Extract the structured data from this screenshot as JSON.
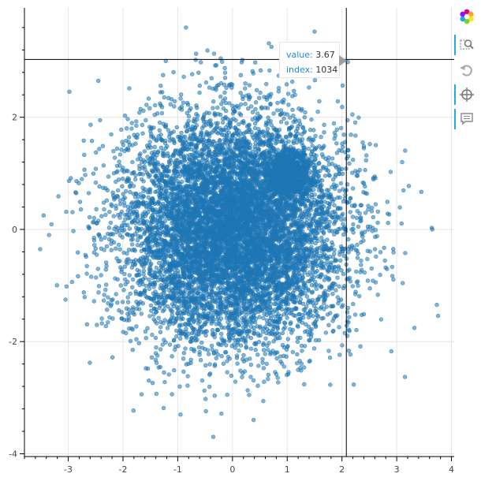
{
  "chart_data": {
    "type": "scatter",
    "title": "",
    "xlabel": "",
    "ylabel": "",
    "xlim": [
      -3.8,
      4.05
    ],
    "ylim": [
      -4.05,
      3.95
    ],
    "x_ticks": [
      "-3",
      "-2",
      "-1",
      "0",
      "1",
      "2",
      "3",
      "4"
    ],
    "y_ticks": [
      "-4",
      "-2",
      "0",
      "2"
    ],
    "grid": true,
    "series": [
      {
        "color": "#1f77b4",
        "distribution": "normal",
        "mean": [
          0,
          0
        ],
        "std": 1.0,
        "count": 9000
      },
      {
        "color": "#1f77b4",
        "distribution": "normal",
        "mean": [
          1,
          1
        ],
        "std": 0.2,
        "count": 1000
      }
    ],
    "outliers": [
      [
        -0.85,
        3.6
      ],
      [
        -0.95,
        -3.3
      ],
      [
        -0.35,
        -3.7
      ],
      [
        3.65,
        0.0
      ],
      [
        3.45,
        0.67
      ],
      [
        3.1,
        1.2
      ],
      [
        -3.45,
        0.25
      ],
      [
        -3.35,
        -0.1
      ],
      [
        -3.05,
        -1.25
      ],
      [
        -2.45,
        2.65
      ]
    ],
    "crosshair": {
      "x": 2.08,
      "y": 3.03
    }
  },
  "tooltip": {
    "value_label": "value:",
    "value": "3.67",
    "index_label": "index:",
    "index": "1034"
  },
  "toolbar": {
    "tools": [
      {
        "name": "bokeh-logo-icon",
        "active": false
      },
      {
        "name": "box-zoom-icon",
        "active": true
      },
      {
        "name": "reset-icon",
        "active": false
      },
      {
        "name": "crosshair-icon",
        "active": true
      },
      {
        "name": "hover-icon",
        "active": true
      }
    ]
  }
}
